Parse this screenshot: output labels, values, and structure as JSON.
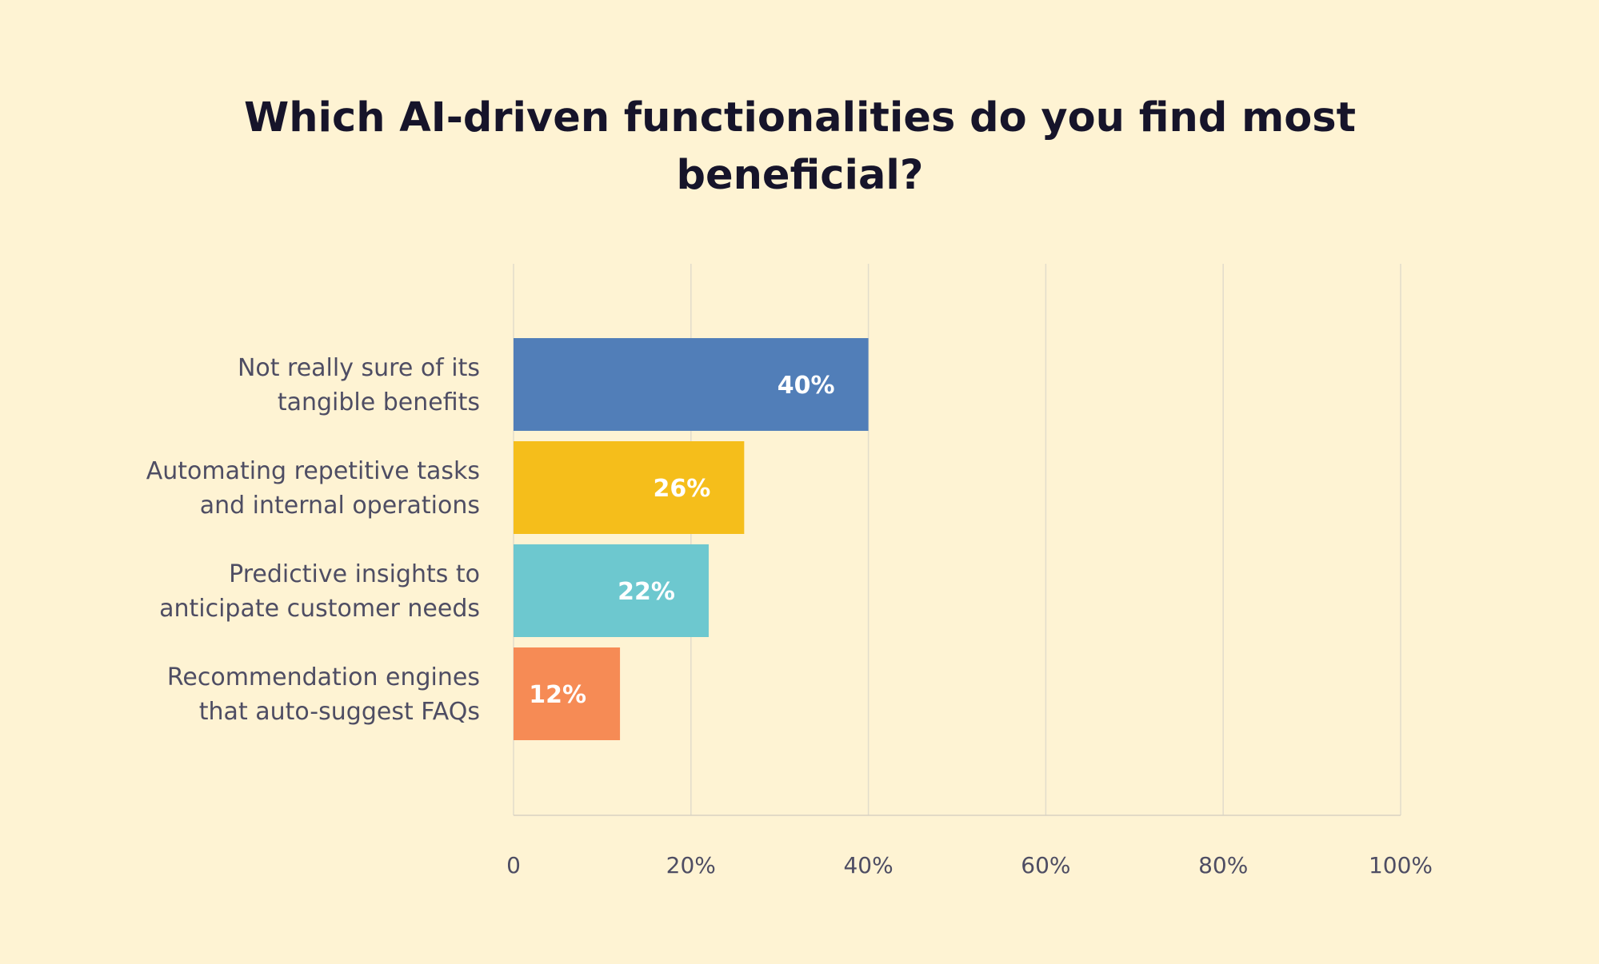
{
  "chart_data": {
    "type": "bar",
    "orientation": "horizontal",
    "title": "Which AI-driven functionalities do you find most beneficial?",
    "categories": [
      "Not really sure of its tangible benefits",
      "Automating repetitive tasks and internal operations",
      "Predictive insights to anticipate customer needs",
      "Recommendation engines that auto-suggest FAQs"
    ],
    "category_label_lines": [
      [
        "Not really sure of its",
        "tangible benefits"
      ],
      [
        "Automating repetitive tasks",
        "and internal operations"
      ],
      [
        "Predictive insights to",
        "anticipate customer needs"
      ],
      [
        "Recommendation engines",
        "that auto-suggest FAQs"
      ]
    ],
    "values": [
      40,
      26,
      22,
      12
    ],
    "data_labels": [
      "40%",
      "26%",
      "22%",
      "12%"
    ],
    "colors": [
      "#517EB8",
      "#F5BE1B",
      "#6DC8CF",
      "#F68B55"
    ],
    "xlim": [
      0,
      100
    ],
    "xticks": [
      0,
      20,
      40,
      60,
      80,
      100
    ],
    "xtick_labels": [
      "0",
      "20%",
      "40%",
      "60%",
      "80%",
      "100%"
    ],
    "grid": true,
    "legend": "none",
    "xlabel": "",
    "ylabel": ""
  }
}
